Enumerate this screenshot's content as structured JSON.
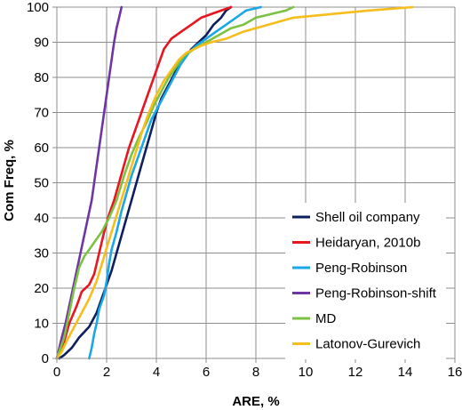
{
  "chart_data": {
    "type": "line",
    "title": "",
    "xlabel": "ARE, %",
    "ylabel": "Com Freq, %",
    "xlim": [
      0,
      16
    ],
    "ylim": [
      0,
      100
    ],
    "x_ticks": [
      "0",
      "2",
      "4",
      "6",
      "8",
      "10",
      "12",
      "14",
      "16"
    ],
    "y_ticks": [
      "0",
      "10",
      "20",
      "30",
      "40",
      "50",
      "60",
      "70",
      "80",
      "90",
      "100"
    ],
    "grid": true,
    "legend_position": "bottom-right",
    "series": [
      {
        "name": "Shell oil company",
        "color": "#0d1f5c",
        "points": [
          [
            0.1,
            0
          ],
          [
            0.3,
            1
          ],
          [
            0.6,
            3
          ],
          [
            0.9,
            6
          ],
          [
            1.3,
            9
          ],
          [
            1.6,
            13
          ],
          [
            1.8,
            17
          ],
          [
            2.0,
            21
          ],
          [
            2.2,
            25
          ],
          [
            2.4,
            30
          ],
          [
            2.6,
            35
          ],
          [
            2.8,
            40
          ],
          [
            3.0,
            45
          ],
          [
            3.2,
            50
          ],
          [
            3.4,
            55
          ],
          [
            3.6,
            60
          ],
          [
            3.8,
            65
          ],
          [
            4.0,
            70
          ],
          [
            4.2,
            74
          ],
          [
            4.5,
            78
          ],
          [
            4.8,
            82
          ],
          [
            5.1,
            85
          ],
          [
            5.4,
            88
          ],
          [
            5.7,
            90
          ],
          [
            6.0,
            92
          ],
          [
            6.3,
            95
          ],
          [
            6.6,
            97
          ],
          [
            6.8,
            99
          ],
          [
            7.0,
            100
          ]
        ]
      },
      {
        "name": "Heidaryan, 2010b",
        "color": "#e8141e",
        "points": [
          [
            0,
            0
          ],
          [
            0.1,
            2
          ],
          [
            0.3,
            5
          ],
          [
            0.5,
            10
          ],
          [
            0.8,
            15
          ],
          [
            1.0,
            19
          ],
          [
            1.3,
            21
          ],
          [
            1.5,
            24
          ],
          [
            1.7,
            30
          ],
          [
            1.9,
            36
          ],
          [
            2.1,
            41
          ],
          [
            2.3,
            45
          ],
          [
            2.5,
            50
          ],
          [
            2.7,
            55
          ],
          [
            2.9,
            60
          ],
          [
            3.1,
            64
          ],
          [
            3.3,
            68
          ],
          [
            3.5,
            72
          ],
          [
            3.7,
            76
          ],
          [
            3.9,
            80
          ],
          [
            4.1,
            84
          ],
          [
            4.3,
            88
          ],
          [
            4.6,
            91
          ],
          [
            5.0,
            93
          ],
          [
            5.4,
            95
          ],
          [
            5.8,
            97
          ],
          [
            6.2,
            98
          ],
          [
            6.6,
            99
          ],
          [
            7.0,
            100
          ]
        ]
      },
      {
        "name": "Peng-Robinson",
        "color": "#1aa7e8",
        "points": [
          [
            1.3,
            0
          ],
          [
            1.4,
            3
          ],
          [
            1.5,
            7
          ],
          [
            1.6,
            10
          ],
          [
            1.7,
            14
          ],
          [
            1.9,
            18
          ],
          [
            2.0,
            22
          ],
          [
            2.1,
            27
          ],
          [
            2.2,
            31
          ],
          [
            2.4,
            36
          ],
          [
            2.6,
            42
          ],
          [
            2.8,
            47
          ],
          [
            3.0,
            52
          ],
          [
            3.2,
            56
          ],
          [
            3.4,
            60
          ],
          [
            3.6,
            64
          ],
          [
            3.8,
            68
          ],
          [
            4.1,
            72
          ],
          [
            4.4,
            76
          ],
          [
            4.7,
            80
          ],
          [
            5.0,
            84
          ],
          [
            5.3,
            87
          ],
          [
            5.6,
            89
          ],
          [
            6.0,
            91
          ],
          [
            6.4,
            93
          ],
          [
            6.8,
            95
          ],
          [
            7.2,
            97
          ],
          [
            7.6,
            99
          ],
          [
            8.2,
            100
          ]
        ]
      },
      {
        "name": "Peng-Robinson-shift",
        "color": "#6f35a5",
        "points": [
          [
            0,
            0
          ],
          [
            0.1,
            3
          ],
          [
            0.2,
            6
          ],
          [
            0.35,
            10
          ],
          [
            0.5,
            15
          ],
          [
            0.65,
            20
          ],
          [
            0.8,
            25
          ],
          [
            0.95,
            30
          ],
          [
            1.1,
            35
          ],
          [
            1.25,
            40
          ],
          [
            1.4,
            45
          ],
          [
            1.5,
            50
          ],
          [
            1.6,
            55
          ],
          [
            1.7,
            60
          ],
          [
            1.8,
            65
          ],
          [
            1.9,
            70
          ],
          [
            2.0,
            75
          ],
          [
            2.1,
            80
          ],
          [
            2.2,
            85
          ],
          [
            2.3,
            90
          ],
          [
            2.4,
            94
          ],
          [
            2.5,
            97
          ],
          [
            2.6,
            100
          ]
        ]
      },
      {
        "name": "MD",
        "color": "#7cc242",
        "points": [
          [
            0,
            0
          ],
          [
            0.1,
            2
          ],
          [
            0.3,
            6
          ],
          [
            0.5,
            13
          ],
          [
            0.7,
            20
          ],
          [
            0.9,
            26
          ],
          [
            1.1,
            29
          ],
          [
            1.3,
            31
          ],
          [
            1.5,
            33
          ],
          [
            1.8,
            36
          ],
          [
            2.1,
            40
          ],
          [
            2.4,
            45
          ],
          [
            2.7,
            52
          ],
          [
            3.0,
            58
          ],
          [
            3.3,
            63
          ],
          [
            3.6,
            67
          ],
          [
            3.9,
            72
          ],
          [
            4.2,
            76
          ],
          [
            4.5,
            80
          ],
          [
            4.8,
            83
          ],
          [
            5.1,
            86
          ],
          [
            5.5,
            88
          ],
          [
            6.0,
            90
          ],
          [
            6.5,
            92
          ],
          [
            7.0,
            94
          ],
          [
            7.5,
            95
          ],
          [
            8.0,
            97
          ],
          [
            8.6,
            98
          ],
          [
            9.2,
            99
          ],
          [
            9.5,
            100
          ]
        ]
      },
      {
        "name": "Latonov-Gurevich",
        "color": "#f7bd1a",
        "points": [
          [
            0,
            0
          ],
          [
            0.2,
            2
          ],
          [
            0.4,
            5
          ],
          [
            0.7,
            9
          ],
          [
            1.0,
            13
          ],
          [
            1.3,
            17
          ],
          [
            1.6,
            22
          ],
          [
            1.9,
            29
          ],
          [
            2.2,
            36
          ],
          [
            2.5,
            43
          ],
          [
            2.8,
            50
          ],
          [
            3.1,
            57
          ],
          [
            3.4,
            64
          ],
          [
            3.7,
            70
          ],
          [
            4.0,
            75
          ],
          [
            4.3,
            79
          ],
          [
            4.6,
            82
          ],
          [
            4.9,
            85
          ],
          [
            5.2,
            87
          ],
          [
            5.5,
            88
          ],
          [
            5.8,
            89
          ],
          [
            6.2,
            90
          ],
          [
            6.8,
            91
          ],
          [
            7.5,
            93
          ],
          [
            8.5,
            95
          ],
          [
            9.5,
            97
          ],
          [
            11.0,
            98
          ],
          [
            12.5,
            99
          ],
          [
            14.3,
            100
          ]
        ]
      }
    ]
  }
}
